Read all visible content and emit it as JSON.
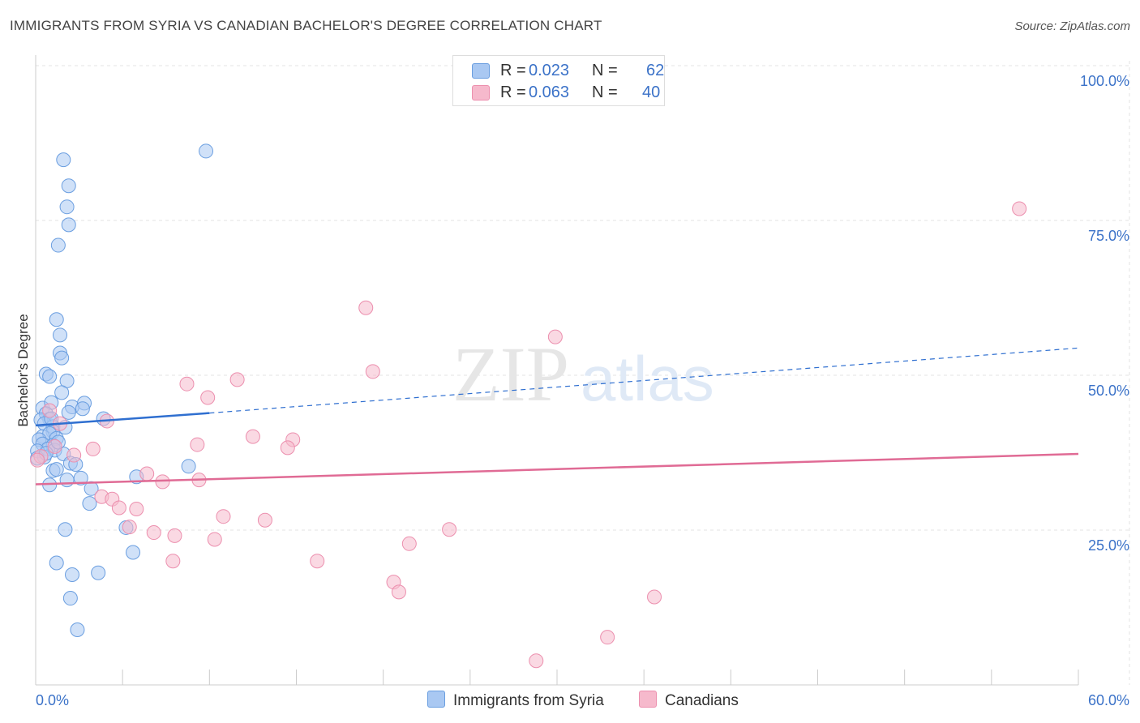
{
  "title": "IMMIGRANTS FROM SYRIA VS CANADIAN BACHELOR'S DEGREE CORRELATION CHART",
  "source": "Source: ZipAtlas.com",
  "watermark": {
    "zip": "ZIP",
    "atlas": "atlas"
  },
  "legend_top": {
    "series1": {
      "r_label": "R =",
      "r_value": "0.023",
      "n_label": "N =",
      "n_value": "62"
    },
    "series2": {
      "r_label": "R =",
      "r_value": "0.063",
      "n_label": "N =",
      "n_value": "40"
    }
  },
  "legend_bottom": {
    "series1": "Immigrants from Syria",
    "series2": "Canadians"
  },
  "colors": {
    "series1_fill": "#a9c8f2",
    "series1_stroke": "#6a9ee0",
    "series1_line": "#2f6fd0",
    "series2_fill": "#f6b9cc",
    "series2_stroke": "#ec8fae",
    "series2_line": "#e06b95",
    "axis_text": "#3b72c8",
    "grid": "#e3e3e3"
  },
  "chart_data": {
    "type": "scatter",
    "title": "IMMIGRANTS FROM SYRIA VS CANADIAN BACHELOR'S DEGREE CORRELATION CHART",
    "xlabel": "",
    "ylabel": "Bachelor's Degree",
    "xlim": [
      0,
      60
    ],
    "ylim": [
      0,
      100
    ],
    "x_tick_labels": [
      "0.0%",
      "60.0%"
    ],
    "y_ticks": [
      25,
      50,
      75,
      100
    ],
    "y_tick_labels": [
      "25.0%",
      "50.0%",
      "75.0%",
      "100.0%"
    ],
    "grid": true,
    "legend_position": "top-center",
    "series": [
      {
        "name": "Immigrants from Syria",
        "r": 0.023,
        "n": 62,
        "trend": {
          "x_start": 0,
          "y_start": 41.9,
          "x_solid_end": 10,
          "y_solid_end": 43.9,
          "x_end": 60,
          "y_end": 54.4
        },
        "points": [
          [
            1.6,
            84.8
          ],
          [
            9.8,
            86.2
          ],
          [
            1.9,
            80.6
          ],
          [
            1.8,
            77.2
          ],
          [
            1.9,
            74.3
          ],
          [
            1.3,
            71.0
          ],
          [
            1.2,
            59.0
          ],
          [
            1.4,
            56.5
          ],
          [
            1.4,
            53.6
          ],
          [
            1.5,
            52.8
          ],
          [
            0.6,
            50.2
          ],
          [
            0.8,
            49.8
          ],
          [
            1.8,
            49.1
          ],
          [
            1.5,
            47.2
          ],
          [
            0.4,
            44.7
          ],
          [
            0.9,
            45.6
          ],
          [
            2.1,
            44.9
          ],
          [
            2.8,
            45.5
          ],
          [
            2.7,
            44.6
          ],
          [
            1.9,
            44.0
          ],
          [
            0.6,
            43.8
          ],
          [
            0.8,
            42.9
          ],
          [
            0.3,
            42.8
          ],
          [
            0.5,
            42.2
          ],
          [
            1.0,
            41.7
          ],
          [
            1.0,
            40.9
          ],
          [
            1.7,
            41.6
          ],
          [
            3.9,
            43.0
          ],
          [
            0.4,
            40.1
          ],
          [
            0.8,
            40.6
          ],
          [
            1.2,
            39.8
          ],
          [
            0.2,
            39.6
          ],
          [
            0.4,
            38.9
          ],
          [
            1.0,
            38.7
          ],
          [
            0.7,
            38.1
          ],
          [
            0.1,
            37.8
          ],
          [
            1.1,
            37.9
          ],
          [
            0.5,
            36.8
          ],
          [
            1.6,
            37.3
          ],
          [
            0.1,
            36.6
          ],
          [
            0.6,
            37.4
          ],
          [
            2.0,
            35.8
          ],
          [
            2.3,
            35.6
          ],
          [
            1.0,
            34.6
          ],
          [
            1.2,
            34.8
          ],
          [
            5.8,
            33.6
          ],
          [
            8.8,
            35.3
          ],
          [
            1.8,
            33.1
          ],
          [
            2.6,
            33.4
          ],
          [
            0.8,
            32.3
          ],
          [
            3.2,
            31.7
          ],
          [
            3.1,
            29.3
          ],
          [
            5.2,
            25.4
          ],
          [
            1.7,
            25.1
          ],
          [
            5.6,
            21.4
          ],
          [
            1.2,
            19.7
          ],
          [
            2.1,
            17.8
          ],
          [
            3.6,
            18.1
          ],
          [
            2.0,
            14.0
          ],
          [
            2.4,
            8.9
          ],
          [
            0.9,
            43.0
          ],
          [
            1.3,
            39.2
          ]
        ]
      },
      {
        "name": "Canadians",
        "r": 0.063,
        "n": 40,
        "trend": {
          "x_start": 0,
          "y_start": 32.4,
          "x_end": 60,
          "y_end": 37.3
        },
        "points": [
          [
            56.6,
            76.9
          ],
          [
            19.0,
            60.9
          ],
          [
            29.9,
            56.2
          ],
          [
            19.4,
            50.6
          ],
          [
            11.6,
            49.3
          ],
          [
            8.7,
            48.6
          ],
          [
            9.9,
            46.4
          ],
          [
            0.8,
            44.3
          ],
          [
            1.4,
            42.2
          ],
          [
            4.1,
            42.6
          ],
          [
            12.5,
            40.1
          ],
          [
            14.8,
            39.6
          ],
          [
            9.3,
            38.8
          ],
          [
            14.5,
            38.3
          ],
          [
            1.1,
            38.5
          ],
          [
            3.3,
            38.1
          ],
          [
            2.2,
            37.1
          ],
          [
            0.3,
            36.9
          ],
          [
            0.1,
            36.3
          ],
          [
            6.4,
            34.1
          ],
          [
            9.4,
            33.1
          ],
          [
            7.3,
            32.8
          ],
          [
            3.8,
            30.4
          ],
          [
            4.4,
            30.0
          ],
          [
            4.8,
            28.6
          ],
          [
            5.8,
            28.4
          ],
          [
            10.8,
            27.2
          ],
          [
            13.2,
            26.6
          ],
          [
            5.4,
            25.5
          ],
          [
            6.8,
            24.6
          ],
          [
            8.0,
            24.1
          ],
          [
            10.3,
            23.5
          ],
          [
            21.5,
            22.8
          ],
          [
            23.8,
            25.1
          ],
          [
            7.9,
            20.0
          ],
          [
            16.2,
            20.0
          ],
          [
            20.6,
            16.6
          ],
          [
            20.9,
            15.0
          ],
          [
            35.6,
            14.2
          ],
          [
            32.9,
            7.7
          ]
        ]
      }
    ],
    "extra_point": [
      28.8,
      3.9
    ]
  }
}
